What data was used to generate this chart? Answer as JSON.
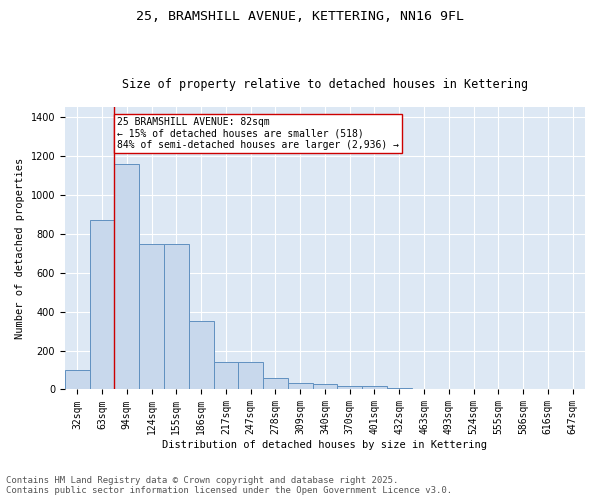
{
  "title_line1": "25, BRAMSHILL AVENUE, KETTERING, NN16 9FL",
  "title_line2": "Size of property relative to detached houses in Kettering",
  "xlabel": "Distribution of detached houses by size in Kettering",
  "ylabel": "Number of detached properties",
  "categories": [
    "32sqm",
    "63sqm",
    "94sqm",
    "124sqm",
    "155sqm",
    "186sqm",
    "217sqm",
    "247sqm",
    "278sqm",
    "309sqm",
    "340sqm",
    "370sqm",
    "401sqm",
    "432sqm",
    "463sqm",
    "493sqm",
    "524sqm",
    "555sqm",
    "586sqm",
    "616sqm",
    "647sqm"
  ],
  "values": [
    100,
    870,
    1160,
    750,
    750,
    350,
    140,
    140,
    60,
    35,
    30,
    20,
    20,
    10,
    0,
    0,
    0,
    0,
    0,
    0,
    0
  ],
  "bar_color": "#c8d8ec",
  "bar_edge_color": "#6090c0",
  "red_line_x": 1.5,
  "annotation_text": "25 BRAMSHILL AVENUE: 82sqm\n← 15% of detached houses are smaller (518)\n84% of semi-detached houses are larger (2,936) →",
  "annotation_box_color": "#ffffff",
  "annotation_box_edge_color": "#cc0000",
  "red_line_color": "#cc0000",
  "background_color": "#dde8f4",
  "ylim": [
    0,
    1450
  ],
  "yticks": [
    0,
    200,
    400,
    600,
    800,
    1000,
    1200,
    1400
  ],
  "footer_line1": "Contains HM Land Registry data © Crown copyright and database right 2025.",
  "footer_line2": "Contains public sector information licensed under the Open Government Licence v3.0.",
  "title_fontsize": 9.5,
  "subtitle_fontsize": 8.5,
  "axis_label_fontsize": 7.5,
  "tick_fontsize": 7,
  "annotation_fontsize": 7,
  "footer_fontsize": 6.5
}
